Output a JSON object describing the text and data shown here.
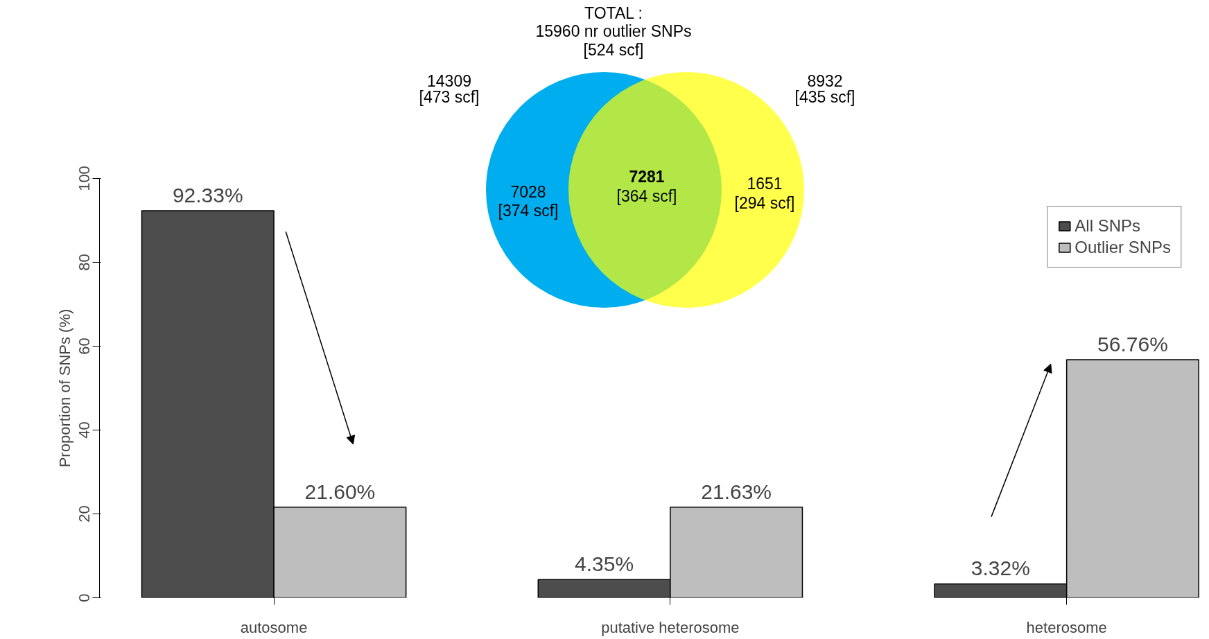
{
  "chart_data": {
    "type": "bar",
    "categories": [
      "autosome",
      "putative heterosome",
      "heterosome"
    ],
    "series": [
      {
        "name": "All SNPs",
        "color": "#4d4d4d",
        "values": [
          92.33,
          4.35,
          3.32
        ],
        "value_labels": [
          "92.33%",
          "4.35%",
          "3.32%"
        ]
      },
      {
        "name": "Outlier SNPs",
        "color": "#bebebe",
        "values": [
          21.6,
          21.63,
          56.76
        ],
        "value_labels": [
          "21.60%",
          "21.63%",
          "56.76%"
        ]
      }
    ],
    "ylabel": "Proportion of SNPs (%)",
    "ylim": [
      0,
      100
    ],
    "yticks": [
      0,
      20,
      40,
      60,
      80,
      100
    ],
    "grid": false,
    "legend": "top right",
    "annotations": [
      "TOTAL :",
      "15960 nr outlier SNPs",
      "[524 scf]",
      "14309",
      "[473 scf]",
      "8932",
      "[435 scf]",
      "7028",
      "[374 scf]",
      "7281",
      "[364 scf]",
      "1651",
      "[294 scf]"
    ]
  }
}
